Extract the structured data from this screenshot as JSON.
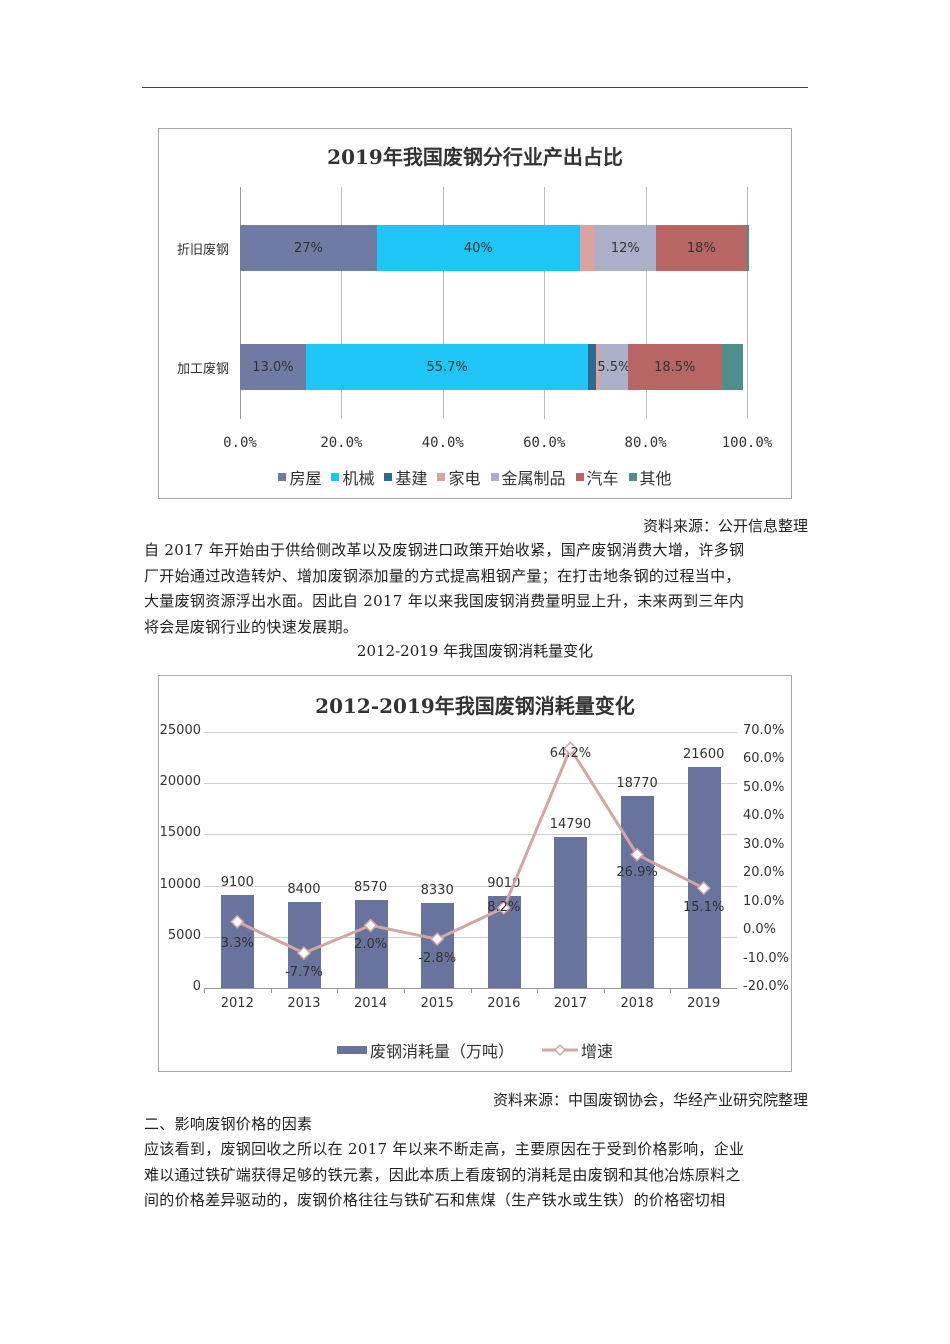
{
  "colors": {
    "房屋": "#6f7ba3",
    "机械": "#20c5f7",
    "基建": "#2c6a8f",
    "家电": "#d9a3a1",
    "金属制品": "#abb0c8",
    "汽车": "#b76663",
    "其他": "#4e8f8b",
    "bar": "#68739e",
    "line": "#d4a5a5"
  },
  "chart_data": [
    {
      "type": "bar",
      "orientation": "horizontal",
      "stacked": true,
      "title": "2019年我国废钢分行业产出占比",
      "categories": [
        "折旧废钢",
        "加工废钢"
      ],
      "series": [
        {
          "name": "房屋",
          "values": [
            27,
            13.0
          ],
          "labels": [
            "27%",
            "13.0%"
          ]
        },
        {
          "name": "机械",
          "values": [
            40,
            55.7
          ],
          "labels": [
            "40%",
            "55.7%"
          ]
        },
        {
          "name": "基建",
          "values": [
            0,
            1.6
          ],
          "labels": [
            "",
            ""
          ]
        },
        {
          "name": "家电",
          "values": [
            3,
            0.7
          ],
          "labels": [
            "",
            ""
          ]
        },
        {
          "name": "金属制品",
          "values": [
            12,
            5.5
          ],
          "labels": [
            "12%",
            "5.5%"
          ]
        },
        {
          "name": "汽车",
          "values": [
            18,
            18.5
          ],
          "labels": [
            "18%",
            "18.5%"
          ]
        },
        {
          "name": "其他",
          "values": [
            0.3,
            4.3
          ],
          "labels": [
            "",
            ""
          ]
        }
      ],
      "xticks": [
        "0.0%",
        "20.0%",
        "40.0%",
        "60.0%",
        "80.0%",
        "100.0%"
      ],
      "xlim": [
        0,
        100
      ],
      "grid": "vertical",
      "legend_position": "bottom"
    },
    {
      "type": "bar+line",
      "title": "2012-2019年我国废钢消耗量变化",
      "categories": [
        "2012",
        "2013",
        "2014",
        "2015",
        "2016",
        "2017",
        "2018",
        "2019"
      ],
      "series": [
        {
          "name": "废钢消耗量（万吨）",
          "type": "bar",
          "axis": "left",
          "values": [
            9100,
            8400,
            8570,
            8330,
            9010,
            14790,
            18770,
            21600
          ]
        },
        {
          "name": "增速",
          "type": "line",
          "axis": "right",
          "values": [
            3.3,
            -7.7,
            2.0,
            -2.8,
            8.2,
            64.2,
            26.9,
            15.1
          ],
          "labels": [
            "3.3%",
            "-7.7%",
            "2.0%",
            "-2.8%",
            "8.2%",
            "64.2%",
            "26.9%",
            "15.1%"
          ]
        }
      ],
      "left_axis": {
        "ticks": [
          "0",
          "5000",
          "10000",
          "15000",
          "20000",
          "25000"
        ],
        "ylim": [
          0,
          25000
        ]
      },
      "right_axis": {
        "ticks": [
          "-20.0%",
          "-10.0%",
          "0.0%",
          "10.0%",
          "20.0%",
          "30.0%",
          "40.0%",
          "50.0%",
          "60.0%",
          "70.0%"
        ],
        "ylim": [
          -20,
          70
        ]
      },
      "grid": "horizontal",
      "legend_position": "bottom"
    }
  ],
  "chart1": {
    "title": "2019年我国废钢分行业产出占比",
    "row1_label": "折旧废钢",
    "row2_label": "加工废钢",
    "legend": [
      "房屋",
      "机械",
      "基建",
      "家电",
      "金属制品",
      "汽车",
      "其他"
    ]
  },
  "chart2": {
    "title": "2012-2019年我国废钢消耗量变化",
    "legend_bar": "废钢消耗量（万吨）",
    "legend_line": "增速"
  },
  "doc": {
    "source1": "资料来源：公开信息整理",
    "para1": "自 2017 年开始由于供给侧改革以及废钢进口政策开始收紧，国产废钢消费大增，许多钢厂开始通过改造转炉、增加废钢添加量的方式提高粗钢产量；在打击地条钢的过程当中，大量废钢资源浮出水面。因此自 2017 年以来我国废钢消费量明显上升，未来两到三年内将会是废钢行业的快速发展期。",
    "para1_lines": [
      "自 2017 年开始由于供给侧改革以及废钢进口政策开始收紧，国产废钢消费大增，许多钢",
      "厂开始通过改造转炉、增加废钢添加量的方式提高粗钢产量；在打击地条钢的过程当中，",
      "大量废钢资源浮出水面。因此自 2017 年以来我国废钢消费量明显上升，未来两到三年内",
      "将会是废钢行业的快速发展期。"
    ],
    "caption2": "2012-2019 年我国废钢消耗量变化",
    "source2": "资料来源：中国废钢协会，华经产业研究院整理",
    "heading2": "二、影响废钢价格的因素",
    "para2_lines": [
      "应该看到，废钢回收之所以在 2017 年以来不断走高，主要原因在于受到价格影响，企业",
      "难以通过铁矿端获得足够的铁元素，因此本质上看废钢的消耗是由废钢和其他冶炼原料之",
      "间的价格差异驱动的，废钢价格往往与铁矿石和焦煤（生产铁水或生铁）的价格密切相"
    ]
  }
}
